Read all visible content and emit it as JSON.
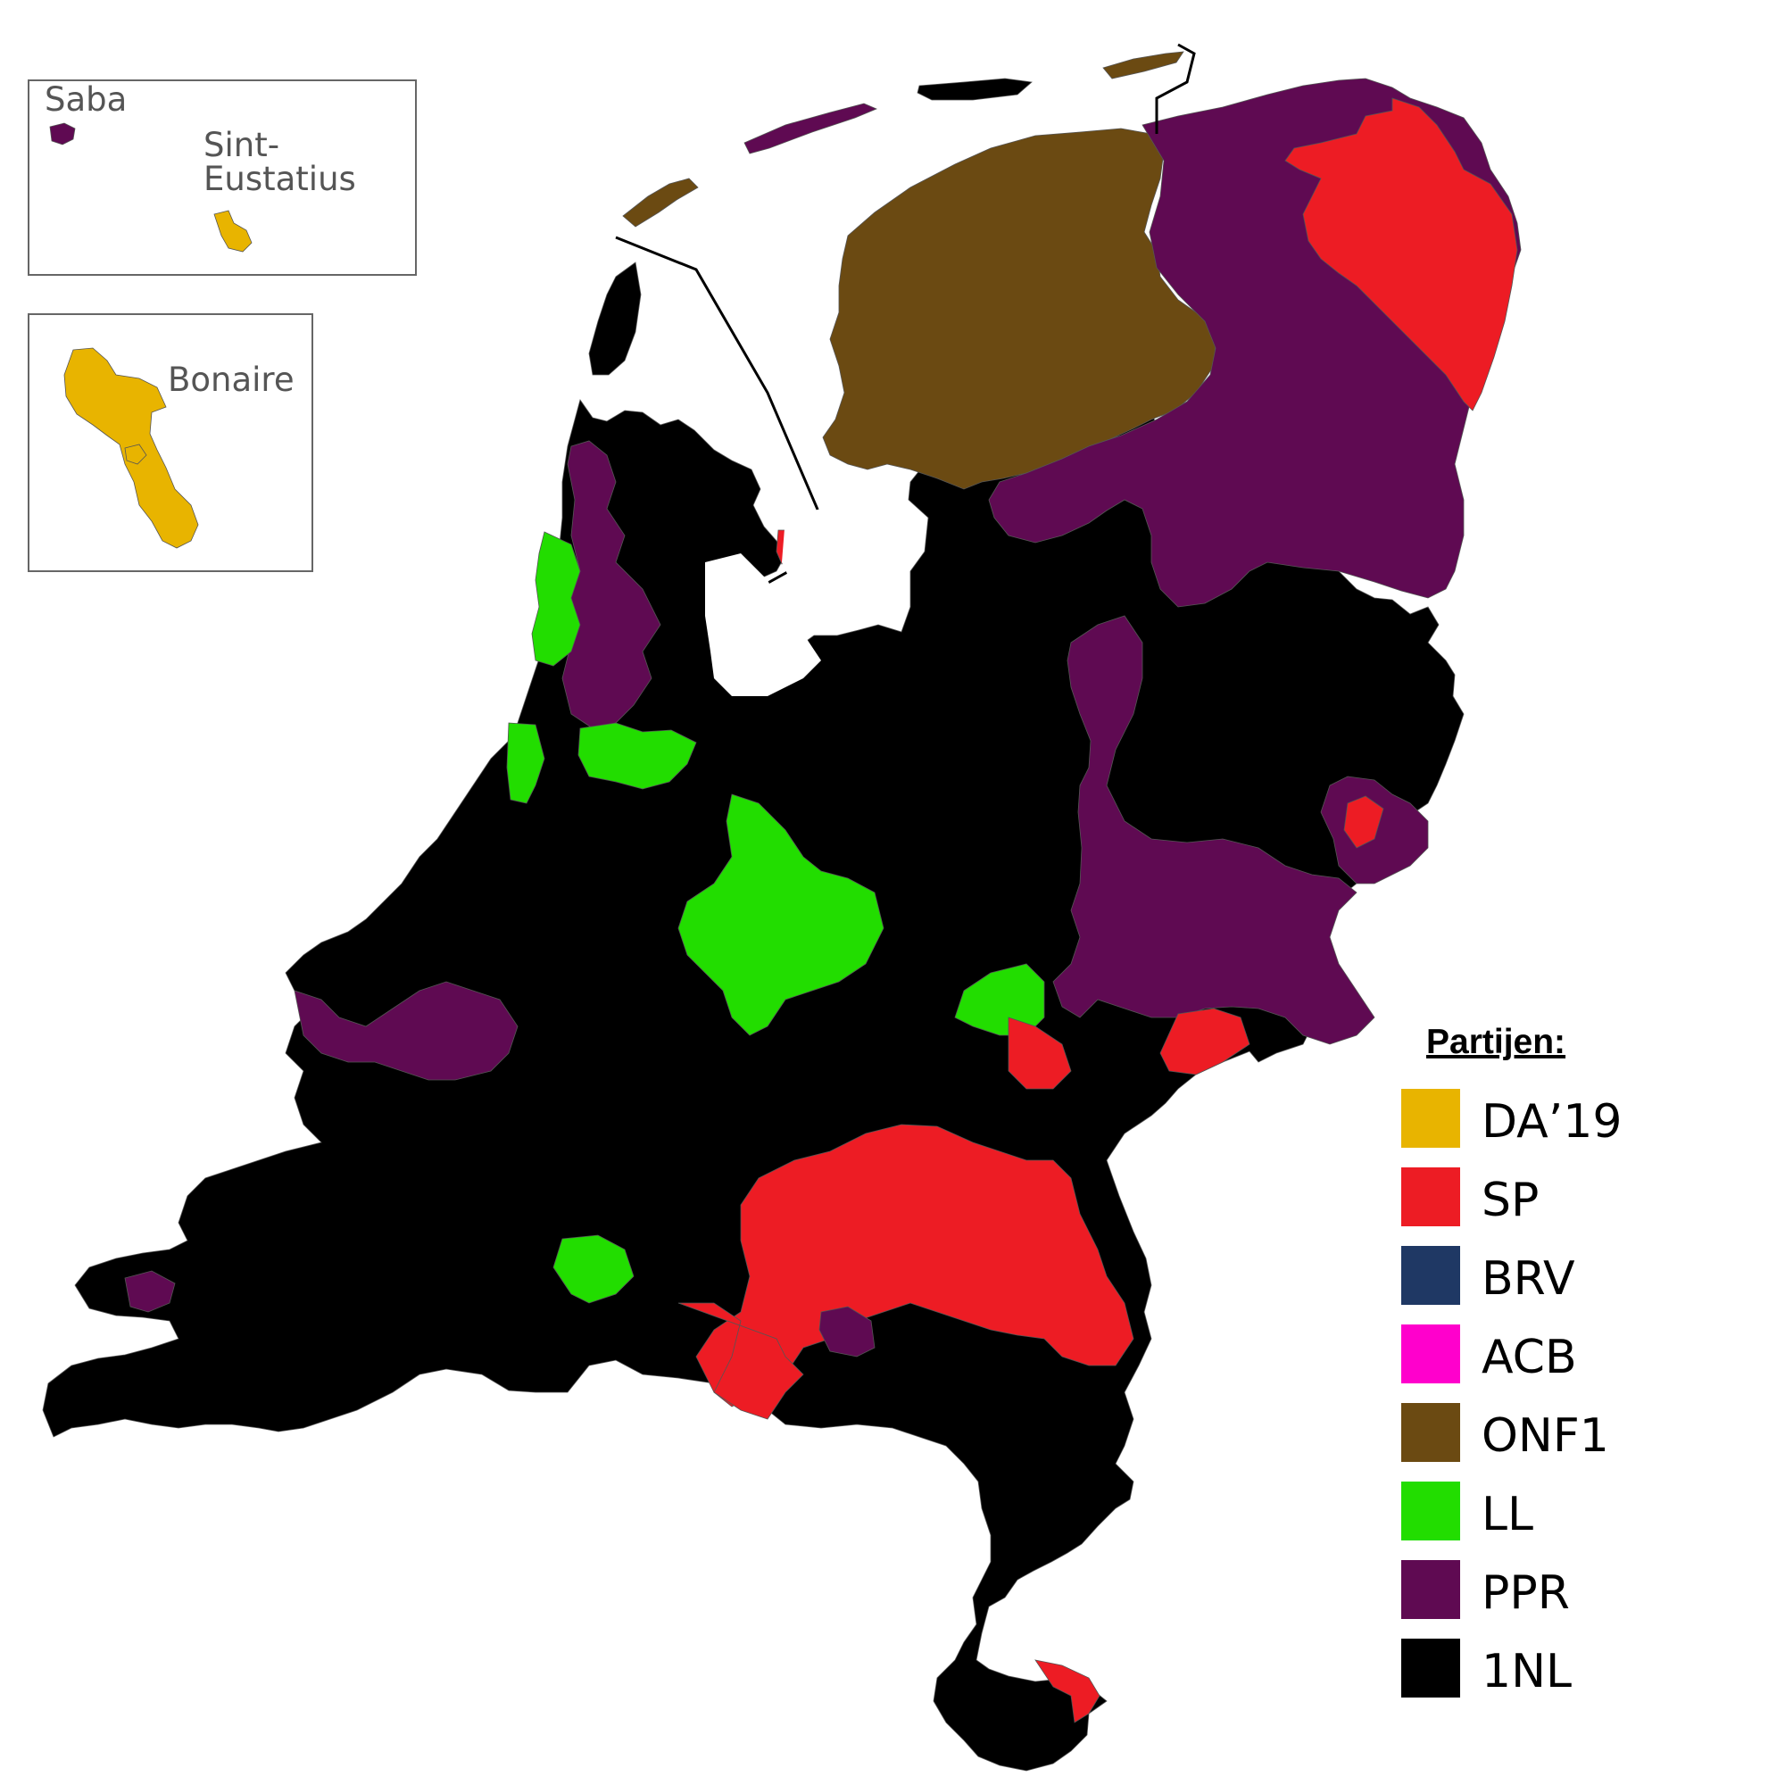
{
  "colors": {
    "DA19": "#E8B400",
    "SP": "#ED1C24",
    "BRV": "#1F3864",
    "ACB": "#FF00CC",
    "ONF1": "#6B4A12",
    "LL": "#22DD00",
    "PPR": "#5F0A52",
    "1NL": "#000000",
    "water": "#ffffff",
    "border": "#000000",
    "inset_border": "#666666"
  },
  "insets": {
    "saba_label": "Saba",
    "sint_eustatius_label_line1": "Sint-",
    "sint_eustatius_label_line2": "Eustatius",
    "bonaire_label": "Bonaire",
    "saba_party": "PPR",
    "sint_eustatius_party": "DA19",
    "bonaire_party": "DA19"
  },
  "legend": {
    "title": "Partijen:",
    "items": [
      {
        "key": "DA19",
        "label": "DA’19"
      },
      {
        "key": "SP",
        "label": "SP"
      },
      {
        "key": "BRV",
        "label": "BRV"
      },
      {
        "key": "ACB",
        "label": "ACB"
      },
      {
        "key": "ONF1",
        "label": "ONF1"
      },
      {
        "key": "LL",
        "label": "LL"
      },
      {
        "key": "PPR",
        "label": "PPR"
      },
      {
        "key": "1NL",
        "label": "1NL"
      }
    ]
  },
  "regions": {
    "friesland": "ONF1",
    "groningen_drenthe": "PPR",
    "east_groningen": "SP",
    "overijssel_east": "PPR",
    "gelderland_south": "SP",
    "limburg_south": "SP",
    "utrecht_center": "LL",
    "haarlem_coast": "LL",
    "amsterdam_area": "LL",
    "default": "1NL"
  }
}
